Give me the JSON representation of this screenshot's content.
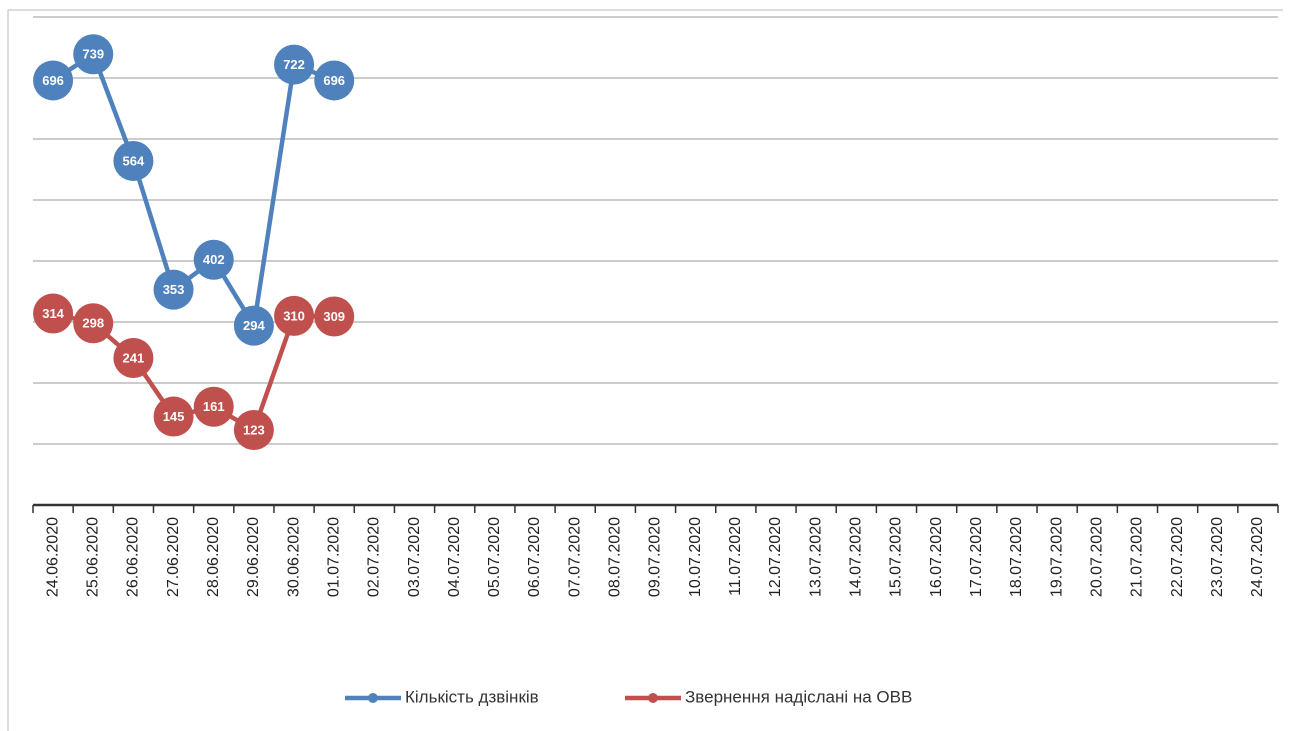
{
  "chart_data": {
    "type": "line",
    "categories": [
      "24.06.2020",
      "25.06.2020",
      "26.06.2020",
      "27.06.2020",
      "28.06.2020",
      "29.06.2020",
      "30.06.2020",
      "01.07.2020",
      "02.07.2020",
      "03.07.2020",
      "04.07.2020",
      "05.07.2020",
      "06.07.2020",
      "07.07.2020",
      "08.07.2020",
      "09.07.2020",
      "10.07.2020",
      "11.07.2020",
      "12.07.2020",
      "13.07.2020",
      "14.07.2020",
      "15.07.2020",
      "16.07.2020",
      "17.07.2020",
      "18.07.2020",
      "19.07.2020",
      "20.07.2020",
      "21.07.2020",
      "22.07.2020",
      "23.07.2020",
      "24.07.2020"
    ],
    "series": [
      {
        "name": "Кількість дзвінків",
        "color": "#4f81bd",
        "values": [
          696,
          739,
          564,
          353,
          402,
          294,
          722,
          696,
          null,
          null,
          null,
          null,
          null,
          null,
          null,
          null,
          null,
          null,
          null,
          null,
          null,
          null,
          null,
          null,
          null,
          null,
          null,
          null,
          null,
          null,
          null
        ]
      },
      {
        "name": "Звернення надіслані на ОВВ",
        "color": "#c0504d",
        "values": [
          314,
          298,
          241,
          145,
          161,
          123,
          310,
          309,
          null,
          null,
          null,
          null,
          null,
          null,
          null,
          null,
          null,
          null,
          null,
          null,
          null,
          null,
          null,
          null,
          null,
          null,
          null,
          null,
          null,
          null,
          null
        ]
      }
    ],
    "ylim": [
      0,
      800
    ],
    "yticks": [
      0,
      100,
      200,
      300,
      400,
      500,
      600,
      700,
      800
    ],
    "grid": true,
    "legend": "bottom"
  }
}
